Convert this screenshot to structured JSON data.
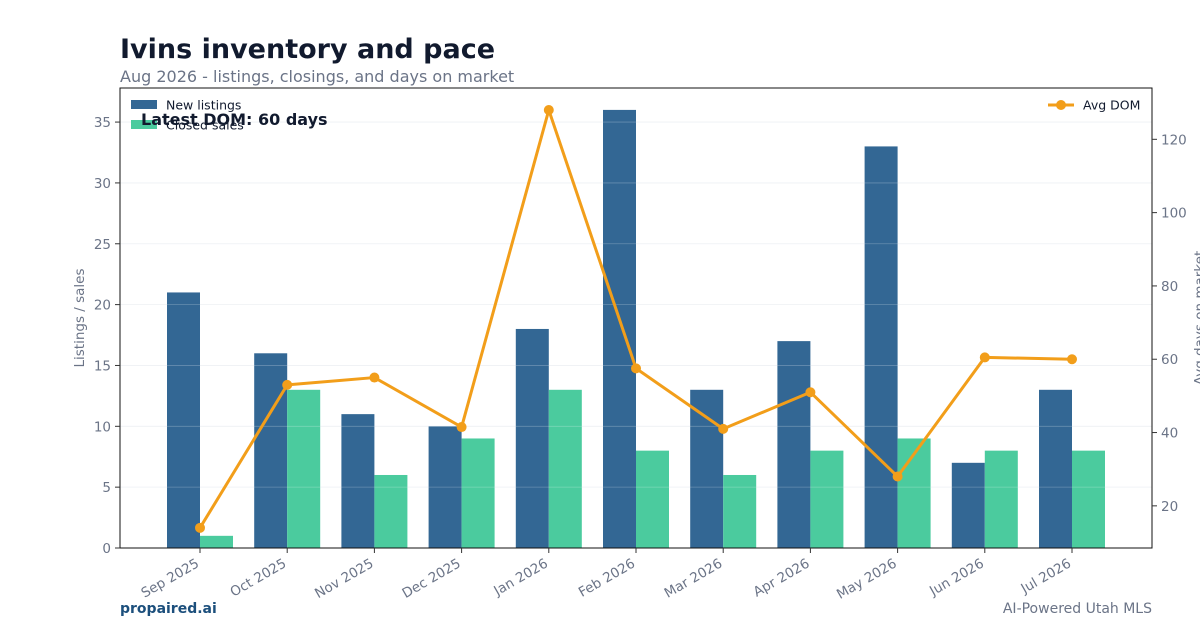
{
  "header": {
    "title": "Ivins inventory and pace",
    "subtitle": "Aug 2026 - listings, closings, and days on market"
  },
  "footer": {
    "brand": "propaired.ai",
    "tagline": "AI-Powered Utah MLS"
  },
  "colors": {
    "new_listings": "#336794",
    "closed_sales": "#4bcb9e",
    "avg_dom": "#f29e1a"
  },
  "chart_data": {
    "type": "bar",
    "categories": [
      "Sep 2025",
      "Oct 2025",
      "Nov 2025",
      "Dec 2025",
      "Jan 2026",
      "Feb 2026",
      "Mar 2026",
      "Apr 2026",
      "May 2026",
      "Jun 2026",
      "Jul 2026"
    ],
    "series": [
      {
        "name": "New listings",
        "type": "bar",
        "axis": "left",
        "values": [
          21,
          16,
          11,
          10,
          18,
          36,
          13,
          17,
          33,
          7,
          13
        ]
      },
      {
        "name": "Closed sales",
        "type": "bar",
        "axis": "left",
        "values": [
          1,
          13,
          6,
          9,
          13,
          8,
          6,
          8,
          9,
          8,
          8
        ]
      },
      {
        "name": "Avg DOM",
        "type": "line",
        "axis": "right",
        "values": [
          14,
          53,
          55,
          41.5,
          128,
          57.5,
          41,
          51,
          28,
          60.5,
          60
        ]
      }
    ],
    "ylabel": "Listings / sales",
    "y2label": "Avg days on market",
    "ylim": [
      0,
      37.8
    ],
    "y2lim": [
      8.5,
      134
    ],
    "yticks": [
      0,
      5,
      10,
      15,
      20,
      25,
      30,
      35
    ],
    "y2ticks": [
      20,
      40,
      60,
      80,
      100,
      120
    ],
    "annotation": "Latest DOM: 60 days",
    "legend_left": "upper-left",
    "legend_right": "upper-right",
    "grid": true
  }
}
